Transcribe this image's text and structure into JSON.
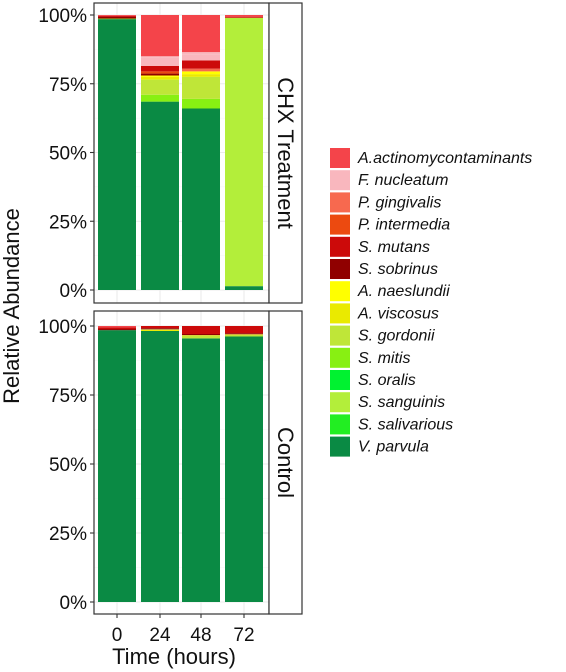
{
  "chart_data": {
    "type": "bar",
    "stacked": true,
    "normalized": true,
    "xlabel": "Time (hours)",
    "ylabel": "Relative Abundance",
    "categories": [
      "0",
      "24",
      "48",
      "72"
    ],
    "yticks": [
      "0%",
      "25%",
      "50%",
      "75%",
      "100%"
    ],
    "ylim": [
      0,
      1
    ],
    "grid": true,
    "legend_position": "right",
    "facets": [
      "CHX Treatment",
      "Control"
    ],
    "species": [
      {
        "name": "A.actinomycontaminants",
        "color": "#f4444a"
      },
      {
        "name": "F. nucleatum",
        "color": "#f9b7be"
      },
      {
        "name": "P. gingivalis",
        "color": "#f7694f"
      },
      {
        "name": "P. intermedia",
        "color": "#ec4a10"
      },
      {
        "name": "S. mutans",
        "color": "#cc0a0a"
      },
      {
        "name": "S. sobrinus",
        "color": "#900000"
      },
      {
        "name": "A. naeslundii",
        "color": "#ffff00"
      },
      {
        "name": "A. viscosus",
        "color": "#eaea00"
      },
      {
        "name": "S. gordonii",
        "color": "#bfe638"
      },
      {
        "name": "S. mitis",
        "color": "#88f012"
      },
      {
        "name": "S. oralis",
        "color": "#00f230"
      },
      {
        "name": "S. sanguinis",
        "color": "#b3ee3a"
      },
      {
        "name": "S. salivarious",
        "color": "#22ee22"
      },
      {
        "name": "V. parvula",
        "color": "#0a8a44"
      }
    ],
    "panels": [
      {
        "facet": "CHX Treatment",
        "stacks": [
          [
            [
              "V. parvula",
              0.985
            ],
            [
              "S. mitis",
              0.002
            ],
            [
              "S. sobrinus",
              0.006
            ],
            [
              "S. mutans",
              0.004
            ],
            [
              "A.actinomycontaminants",
              0.003
            ]
          ],
          [
            [
              "V. parvula",
              0.685
            ],
            [
              "S. mitis",
              0.025
            ],
            [
              "S. gordonii",
              0.055
            ],
            [
              "A. viscosus",
              0.01
            ],
            [
              "A. naeslundii",
              0.005
            ],
            [
              "S. sobrinus",
              0.007
            ],
            [
              "P. intermedia",
              0.008
            ],
            [
              "S. mutans",
              0.02
            ],
            [
              "F. nucleatum",
              0.03
            ],
            [
              "F. nucleatum",
              0.005
            ],
            [
              "A.actinomycontaminants",
              0.15
            ]
          ],
          [
            [
              "V. parvula",
              0.66
            ],
            [
              "S. mitis",
              0.035
            ],
            [
              "S. gordonii",
              0.08
            ],
            [
              "A. viscosus",
              0.01
            ],
            [
              "A. naeslundii",
              0.01
            ],
            [
              "P. gingivalis",
              0.01
            ],
            [
              "S. mutans",
              0.03
            ],
            [
              "F. nucleatum",
              0.02
            ],
            [
              "F. nucleatum",
              0.01
            ],
            [
              "A.actinomycontaminants",
              0.135
            ]
          ],
          [
            [
              "V. parvula",
              0.014
            ],
            [
              "S. sanguinis",
              0.976
            ],
            [
              "S. mutans",
              0.004
            ],
            [
              "A.actinomycontaminants",
              0.006
            ]
          ]
        ]
      },
      {
        "facet": "Control",
        "stacks": [
          [
            [
              "V. parvula",
              0.985
            ],
            [
              "S. sobrinus",
              0.004
            ],
            [
              "S. mutans",
              0.006
            ],
            [
              "A.actinomycontaminants",
              0.005
            ]
          ],
          [
            [
              "V. parvula",
              0.982
            ],
            [
              "A. viscosus",
              0.004
            ],
            [
              "S. gordonii",
              0.002
            ],
            [
              "S. sobrinus",
              0.004
            ],
            [
              "S. mutans",
              0.008
            ]
          ],
          [
            [
              "V. parvula",
              0.955
            ],
            [
              "S. gordonii",
              0.01
            ],
            [
              "A. viscosus",
              0.002
            ],
            [
              "S. sobrinus",
              0.004
            ],
            [
              "S. mutans",
              0.029
            ]
          ],
          [
            [
              "V. parvula",
              0.962
            ],
            [
              "S. gordonii",
              0.006
            ],
            [
              "A. viscosus",
              0.002
            ],
            [
              "S. sobrinus",
              0.004
            ],
            [
              "S. mutans",
              0.026
            ]
          ]
        ]
      }
    ]
  }
}
